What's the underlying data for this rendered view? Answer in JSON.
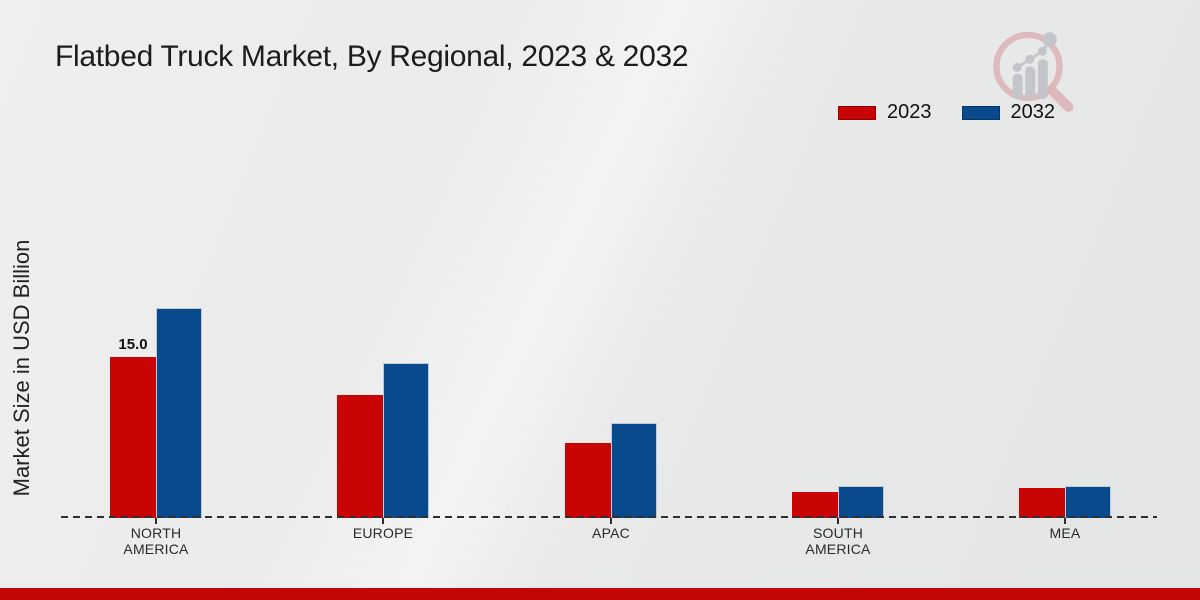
{
  "chart_data": {
    "type": "bar",
    "title": "Flatbed Truck Market, By Regional, 2023 & 2032",
    "ylabel": "Market Size in USD Billion",
    "unit": "USD Billion",
    "categories": [
      "NORTH AMERICA",
      "EUROPE",
      "APAC",
      "SOUTH AMERICA",
      "MEA"
    ],
    "series": [
      {
        "name": "2023",
        "color": "#c90404",
        "values": [
          15.0,
          11.5,
          7.0,
          2.4,
          2.8
        ]
      },
      {
        "name": "2032",
        "color": "#094a8c",
        "values": [
          19.6,
          14.5,
          8.9,
          3.0,
          3.0
        ]
      }
    ],
    "annotations": [
      {
        "series": "2023",
        "category": "NORTH AMERICA",
        "text": "15.0"
      }
    ],
    "ylim": [
      0,
      21
    ],
    "grid": false,
    "y_axis_visible": false,
    "baseline_style": "dashed",
    "legend_position": "top-right"
  },
  "watermark": {
    "icon": "magnifier-bar-chart-logo"
  },
  "footer": {
    "accent_bar_color": "#c30606"
  }
}
